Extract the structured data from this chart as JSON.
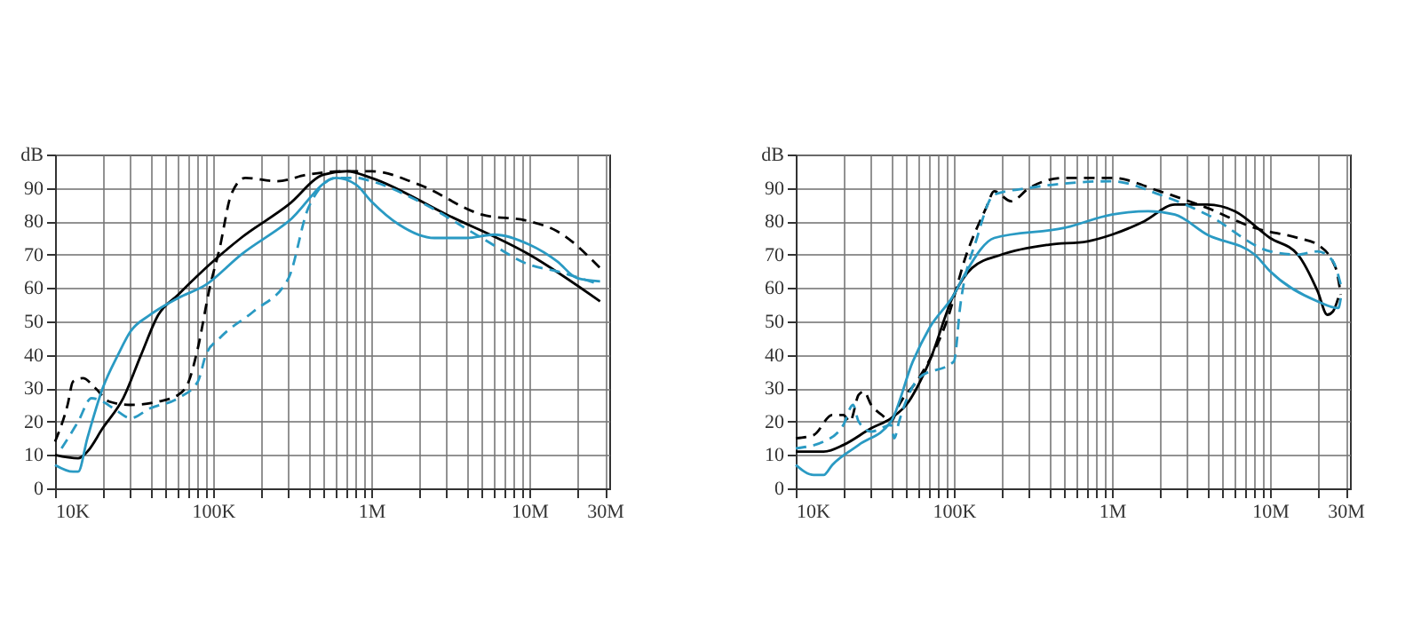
{
  "chart_data": [
    {
      "type": "line",
      "log": "x",
      "grid": true,
      "xlim": [
        10000,
        32000000
      ],
      "ylim": [
        0,
        100
      ],
      "xticks": [
        {
          "value": 10000,
          "label": "10K"
        },
        {
          "value": 20000,
          "label": null
        },
        {
          "value": 30000,
          "label": null
        },
        {
          "value": 40000,
          "label": null
        },
        {
          "value": 50000,
          "label": null
        },
        {
          "value": 60000,
          "label": null
        },
        {
          "value": 70000,
          "label": null
        },
        {
          "value": 80000,
          "label": null
        },
        {
          "value": 90000,
          "label": null
        },
        {
          "value": 100000,
          "label": "100K"
        },
        {
          "value": 200000,
          "label": null
        },
        {
          "value": 300000,
          "label": null
        },
        {
          "value": 400000,
          "label": null
        },
        {
          "value": 500000,
          "label": null
        },
        {
          "value": 600000,
          "label": null
        },
        {
          "value": 700000,
          "label": null
        },
        {
          "value": 800000,
          "label": null
        },
        {
          "value": 900000,
          "label": null
        },
        {
          "value": 1000000,
          "label": "1M"
        },
        {
          "value": 2000000,
          "label": null
        },
        {
          "value": 3000000,
          "label": null
        },
        {
          "value": 4000000,
          "label": null
        },
        {
          "value": 5000000,
          "label": null
        },
        {
          "value": 6000000,
          "label": null
        },
        {
          "value": 7000000,
          "label": null
        },
        {
          "value": 8000000,
          "label": null
        },
        {
          "value": 9000000,
          "label": null
        },
        {
          "value": 10000000,
          "label": "10M"
        },
        {
          "value": 20000000,
          "label": null
        },
        {
          "value": 30000000,
          "label": "30M"
        }
      ],
      "yticks": [
        0,
        10,
        20,
        30,
        40,
        50,
        60,
        70,
        80,
        90,
        {
          "value": 100,
          "label": "dB"
        }
      ],
      "series": [
        {
          "color": "#000000",
          "line_style": "solid",
          "x": [
            10000,
            14000,
            16000,
            20000,
            27000,
            35000,
            45000,
            60000,
            100000,
            150000,
            300000,
            500000,
            700000,
            1000000,
            3000000,
            10000000,
            28000000
          ],
          "values": [
            10,
            9,
            11,
            18,
            27,
            40,
            52,
            58,
            68,
            75,
            85,
            94,
            95,
            93,
            82,
            70,
            56
          ]
        },
        {
          "color": "#000000",
          "line_style": "dashed",
          "x": [
            10000,
            12000,
            13000,
            15000,
            18000,
            22000,
            30000,
            45000,
            60000,
            70000,
            80000,
            95000,
            110000,
            130000,
            160000,
            250000,
            400000,
            700000,
            1000000,
            2000000,
            5000000,
            10000000,
            15000000,
            28000000
          ],
          "values": [
            14,
            25,
            32,
            33,
            30,
            26,
            25,
            26,
            28,
            32,
            42,
            60,
            72,
            88,
            93,
            92,
            94,
            95,
            95,
            91,
            82,
            80,
            77,
            66
          ]
        },
        {
          "color": "#2a9ac3",
          "line_style": "solid",
          "x": [
            10000,
            13000,
            14000,
            16000,
            20000,
            25000,
            30000,
            40000,
            60000,
            90000,
            150000,
            300000,
            600000,
            800000,
            1000000,
            1500000,
            2500000,
            4000000,
            6000000,
            10000000,
            15000000,
            20000000,
            28000000
          ],
          "values": [
            7,
            5,
            5,
            15,
            30,
            40,
            47,
            52,
            57,
            61,
            70,
            80,
            93,
            91,
            86,
            79,
            75,
            75,
            76,
            73,
            68,
            63,
            62
          ]
        },
        {
          "color": "#2a9ac3",
          "line_style": "dashed",
          "x": [
            11000,
            14000,
            17000,
            20000,
            25000,
            30000,
            40000,
            60000,
            80000,
            90000,
            110000,
            180000,
            300000,
            400000,
            600000,
            800000,
            1000000,
            2000000,
            5000000,
            10000000,
            15000000,
            28000000
          ],
          "values": [
            12,
            20,
            27,
            26,
            23,
            21,
            24,
            27,
            32,
            40,
            45,
            53,
            63,
            84,
            93,
            93,
            92,
            86,
            75,
            67,
            65,
            61
          ]
        }
      ]
    },
    {
      "type": "line",
      "log": "x",
      "grid": true,
      "xlim": [
        10000,
        32000000
      ],
      "ylim": [
        0,
        100
      ],
      "xticks": [
        {
          "value": 10000,
          "label": "10K"
        },
        {
          "value": 20000,
          "label": null
        },
        {
          "value": 30000,
          "label": null
        },
        {
          "value": 40000,
          "label": null
        },
        {
          "value": 50000,
          "label": null
        },
        {
          "value": 60000,
          "label": null
        },
        {
          "value": 70000,
          "label": null
        },
        {
          "value": 80000,
          "label": null
        },
        {
          "value": 90000,
          "label": null
        },
        {
          "value": 100000,
          "label": "100K"
        },
        {
          "value": 200000,
          "label": null
        },
        {
          "value": 300000,
          "label": null
        },
        {
          "value": 400000,
          "label": null
        },
        {
          "value": 500000,
          "label": null
        },
        {
          "value": 600000,
          "label": null
        },
        {
          "value": 700000,
          "label": null
        },
        {
          "value": 800000,
          "label": null
        },
        {
          "value": 900000,
          "label": null
        },
        {
          "value": 1000000,
          "label": "1M"
        },
        {
          "value": 2000000,
          "label": null
        },
        {
          "value": 3000000,
          "label": null
        },
        {
          "value": 4000000,
          "label": null
        },
        {
          "value": 5000000,
          "label": null
        },
        {
          "value": 6000000,
          "label": null
        },
        {
          "value": 7000000,
          "label": null
        },
        {
          "value": 8000000,
          "label": null
        },
        {
          "value": 9000000,
          "label": null
        },
        {
          "value": 10000000,
          "label": "10M"
        },
        {
          "value": 20000000,
          "label": null
        },
        {
          "value": 30000000,
          "label": "30M"
        }
      ],
      "yticks": [
        0,
        10,
        20,
        30,
        40,
        50,
        60,
        70,
        80,
        90,
        {
          "value": 100,
          "label": "dB"
        }
      ],
      "series": [
        {
          "color": "#000000",
          "line_style": "solid",
          "x": [
            10000,
            15000,
            20000,
            30000,
            40000,
            50000,
            70000,
            100000,
            130000,
            200000,
            400000,
            700000,
            1000000,
            1600000,
            2500000,
            4000000,
            6000000,
            10000000,
            15000000,
            20000000,
            23000000,
            25000000,
            27000000
          ],
          "values": [
            11,
            11,
            13,
            18,
            21,
            25,
            38,
            58,
            66,
            70,
            73,
            74,
            76,
            80,
            85,
            85,
            83,
            75,
            70,
            59,
            52,
            53,
            57
          ]
        },
        {
          "color": "#000000",
          "line_style": "dashed",
          "x": [
            10000,
            13000,
            17000,
            20000,
            22000,
            25000,
            27000,
            30000,
            35000,
            40000,
            45000,
            60000,
            90000,
            120000,
            160000,
            180000,
            230000,
            300000,
            500000,
            1000000,
            2000000,
            4000000,
            8000000,
            15000000,
            20000000,
            26000000,
            28000000
          ],
          "values": [
            15,
            16,
            22,
            22,
            20,
            28,
            29,
            25,
            22,
            20,
            25,
            33,
            50,
            70,
            84,
            89,
            86,
            90,
            93,
            93,
            89,
            84,
            78,
            75,
            73,
            66,
            58
          ]
        },
        {
          "color": "#2a9ac3",
          "line_style": "solid",
          "x": [
            10000,
            13000,
            15000,
            17000,
            25000,
            40000,
            55000,
            70000,
            100000,
            120000,
            180000,
            500000,
            1000000,
            1700000,
            2500000,
            4000000,
            8000000,
            10000000,
            20000000,
            27000000,
            28000000
          ],
          "values": [
            7,
            4,
            4,
            7,
            13,
            20,
            38,
            48,
            58,
            65,
            75,
            78,
            82,
            83,
            82,
            76,
            70,
            65,
            56,
            54,
            57
          ]
        },
        {
          "color": "#2a9ac3",
          "line_style": "dashed",
          "x": [
            10000,
            15000,
            20000,
            23000,
            25000,
            30000,
            40000,
            42000,
            45000,
            60000,
            100000,
            110000,
            140000,
            180000,
            300000,
            1000000,
            2000000,
            4000000,
            10000000,
            15000000,
            20000000,
            25000000,
            28000000
          ],
          "values": [
            12,
            14,
            19,
            25,
            20,
            17,
            19,
            15,
            20,
            33,
            38,
            55,
            75,
            88,
            90,
            92,
            88,
            82,
            71,
            70,
            71,
            68,
            61
          ]
        }
      ]
    }
  ]
}
